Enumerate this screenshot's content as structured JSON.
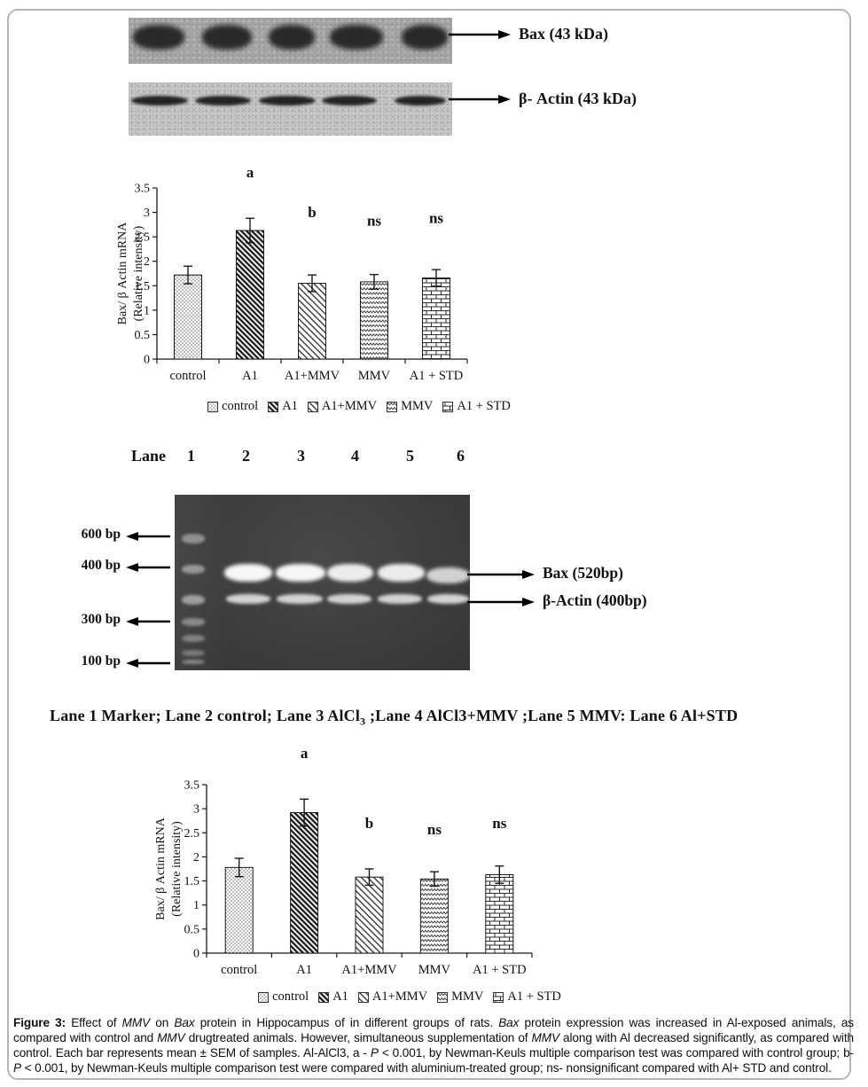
{
  "figure": {
    "blots": {
      "bax_label": "Bax (43 kDa)",
      "bactin_label": "β- Actin (43 kDa)"
    },
    "lane_header": {
      "title": "Lane",
      "numbers": [
        "1",
        "2",
        "3",
        "4",
        "5",
        "6"
      ]
    },
    "gel": {
      "bp_markers": [
        "600 bp",
        "400 bp",
        "300 bp",
        "100 bp"
      ],
      "band_labels": [
        "Bax (520bp)",
        "β-Actin (400bp)"
      ]
    },
    "lane_caption_segments": [
      {
        "t": "Lane 1  Marker; Lane 2 control; Lane 3 AlCl"
      },
      {
        "t": "3",
        "s": "sub"
      },
      {
        "t": " ;Lane 4 AlCl3+MMV ;Lane 5 MMV: Lane 6  Al+STD"
      }
    ],
    "caption_segments": [
      {
        "t": "Figure 3: ",
        "s": "b"
      },
      {
        "t": "Effect of "
      },
      {
        "t": "MMV",
        "s": "i"
      },
      {
        "t": " on "
      },
      {
        "t": "Bax",
        "s": "i"
      },
      {
        "t": " protein in Hippocampus of in different groups of rats. "
      },
      {
        "t": "Bax",
        "s": "i"
      },
      {
        "t": " protein expression was increased in Al-exposed animals, as compared with control and "
      },
      {
        "t": "MMV",
        "s": "i"
      },
      {
        "t": " drugtreated animals. However, simultaneous supplementation of "
      },
      {
        "t": "MMV",
        "s": "i"
      },
      {
        "t": " along with Al decreased significantly, as compared with control. Each bar represents mean ± SEM of samples. Al-AlCl3, a - "
      },
      {
        "t": "P",
        "s": "i"
      },
      {
        "t": " < 0.001, by Newman-Keuls multiple comparison test was compared with control group; b-"
      },
      {
        "t": "P",
        "s": "i"
      },
      {
        "t": " < 0.001, by Newman-Keuls multiple comparison test were compared with aluminium-treated group; ns- nonsignificant compared with Al+ STD and control."
      }
    ]
  },
  "chart_data": [
    {
      "type": "bar",
      "categories": [
        "control",
        "A1",
        "A1+MMV",
        "MMV",
        "A1 + STD"
      ],
      "values": [
        1.72,
        2.63,
        1.55,
        1.58,
        1.66
      ],
      "errors": [
        0.18,
        0.25,
        0.17,
        0.15,
        0.17
      ],
      "annotations": [
        null,
        "a",
        "b",
        "ns",
        "ns"
      ],
      "annotation_y": [
        null,
        3.72,
        2.9,
        2.73,
        2.78
      ],
      "ylabel": "Bax/ β Actin mRNA (Relative intensity)",
      "ylabel_lines": [
        "Bax/ β Actin mRNA",
        "(Relative intensity)"
      ],
      "yticks": [
        0,
        0.5,
        1,
        1.5,
        2,
        2.5,
        3,
        3.5
      ],
      "ylim": [
        0,
        3.5
      ],
      "xlabel": "",
      "grid": false,
      "legend": [
        "control",
        "A1",
        "A1+MMV",
        "MMV",
        "A1 + STD"
      ],
      "legend_position": "bottom",
      "bar_patterns": [
        "dots",
        "hatch-dark",
        "hatch-light",
        "zigzag",
        "brick"
      ]
    },
    {
      "type": "bar",
      "categories": [
        "control",
        "A1",
        "A1+MMV",
        "MMV",
        "A1 + STD"
      ],
      "values": [
        1.78,
        2.92,
        1.58,
        1.54,
        1.63
      ],
      "errors": [
        0.19,
        0.28,
        0.17,
        0.15,
        0.18
      ],
      "annotations": [
        null,
        "a",
        "b",
        "ns",
        "ns"
      ],
      "annotation_y": [
        null,
        4.05,
        2.6,
        2.47,
        2.6
      ],
      "ylabel": "Bax/ β Actin mRNA (Relative intensity)",
      "ylabel_lines": [
        "Bax/ β Actin mRNA",
        "(Relative intensity)"
      ],
      "yticks": [
        0,
        0.5,
        1,
        1.5,
        2,
        2.5,
        3,
        3.5
      ],
      "ylim": [
        0,
        3.5
      ],
      "xlabel": "",
      "grid": false,
      "legend": [
        "control",
        "A1",
        "A1+MMV",
        "MMV",
        "A1 + STD"
      ],
      "legend_position": "bottom",
      "bar_patterns": [
        "dots",
        "hatch-dark",
        "hatch-light",
        "zigzag",
        "brick"
      ]
    }
  ]
}
